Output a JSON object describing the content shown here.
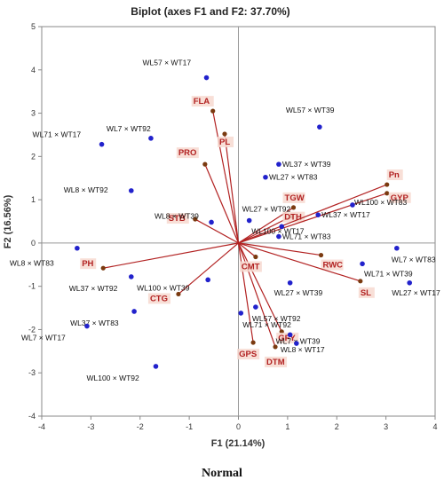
{
  "chart_data": {
    "type": "scatter",
    "title": "Biplot (axes F1 and F2: 37.70%)",
    "xlabel": "F1 (21.14%)",
    "ylabel": "F2 (16.56%)",
    "xlim": [
      -4,
      4
    ],
    "ylim": [
      -4,
      5
    ],
    "xticks": [
      -4,
      -3,
      -2,
      -1,
      0,
      1,
      2,
      3,
      4
    ],
    "yticks": [
      -4,
      -3,
      -2,
      -1,
      0,
      1,
      2,
      3,
      4,
      5
    ],
    "grid": false,
    "observations": [
      {
        "label": "WL57 × WT17",
        "x": -0.65,
        "y": 3.82
      },
      {
        "label": "WL71 × WT17",
        "x": -2.78,
        "y": 2.28
      },
      {
        "label": "WL7 × WT92",
        "x": -1.78,
        "y": 2.42
      },
      {
        "label": "WL8 × WT92",
        "x": -2.18,
        "y": 1.21
      },
      {
        "label": "WL8 × WT39",
        "x": -0.55,
        "y": 0.48
      },
      {
        "label": "WL8 × WT83",
        "x": -3.28,
        "y": -0.12
      },
      {
        "label": "WL37 × WT92",
        "x": -2.18,
        "y": -0.78
      },
      {
        "label": "WL100 × WT39",
        "x": -0.62,
        "y": -0.85
      },
      {
        "label": "WL37 × WT83",
        "x": -2.12,
        "y": -1.58
      },
      {
        "label": "WL7 × WT17",
        "x": -3.08,
        "y": -1.92
      },
      {
        "label": "WL100 × WT92",
        "x": -1.68,
        "y": -2.85
      },
      {
        "label": "WL57 × WT39",
        "x": 1.65,
        "y": 2.68
      },
      {
        "label": "WL37 × WT39",
        "x": 0.82,
        "y": 1.82
      },
      {
        "label": "WL27 × WT83",
        "x": 0.55,
        "y": 1.52
      },
      {
        "label": "WL27 × WT92",
        "x": 0.22,
        "y": 0.52
      },
      {
        "label": "WL100 × WT17",
        "x": 0.88,
        "y": 0.38
      },
      {
        "label": "WL71 × WT83",
        "x": 0.82,
        "y": 0.15
      },
      {
        "label": "WL37 × WT17",
        "x": 1.62,
        "y": 0.65
      },
      {
        "label": "WL100 × WT83",
        "x": 2.32,
        "y": 0.88
      },
      {
        "label": "WL7 × WT83",
        "x": 3.22,
        "y": -0.12
      },
      {
        "label": "WL71 × WT39",
        "x": 2.52,
        "y": -0.48
      },
      {
        "label": "WL27 × WT17",
        "x": 3.48,
        "y": -0.92
      },
      {
        "label": "WL27 × WT39",
        "x": 1.05,
        "y": -0.92
      },
      {
        "label": "WL57 × WT92",
        "x": 0.35,
        "y": -1.48
      },
      {
        "label": "WL71 × WT92",
        "x": 0.05,
        "y": -1.62
      },
      {
        "label": "WL7 × WT39",
        "x": 1.05,
        "y": -2.12
      },
      {
        "label": "WL8 × WT17",
        "x": 1.18,
        "y": -2.32
      }
    ],
    "variables": [
      {
        "label": "FLA",
        "x": -0.52,
        "y": 3.05
      },
      {
        "label": "PL",
        "x": -0.28,
        "y": 2.52
      },
      {
        "label": "PRO",
        "x": -0.68,
        "y": 1.82
      },
      {
        "label": "STB",
        "x": -0.88,
        "y": 0.55
      },
      {
        "label": "PH",
        "x": -2.75,
        "y": -0.58
      },
      {
        "label": "CTG",
        "x": -1.22,
        "y": -1.18
      },
      {
        "label": "GPS",
        "x": 0.3,
        "y": -2.3
      },
      {
        "label": "DTM",
        "x": 0.75,
        "y": -2.4
      },
      {
        "label": "GFY",
        "x": 0.88,
        "y": -2.05
      },
      {
        "label": "CMT",
        "x": 0.35,
        "y": -0.32
      },
      {
        "label": "RWC",
        "x": 1.68,
        "y": -0.28
      },
      {
        "label": "SL",
        "x": 2.48,
        "y": -0.88
      },
      {
        "label": "TGW",
        "x": 1.12,
        "y": 0.82
      },
      {
        "label": "DTH",
        "x": 1.08,
        "y": 0.62
      },
      {
        "label": "Pn",
        "x": 3.02,
        "y": 1.35
      },
      {
        "label": "GYP",
        "x": 3.02,
        "y": 1.15
      }
    ],
    "colors": {
      "observations": "#2222cc",
      "variables": "#b22222",
      "arrow_tip": "#7a3a10"
    }
  },
  "caption": "Normal"
}
